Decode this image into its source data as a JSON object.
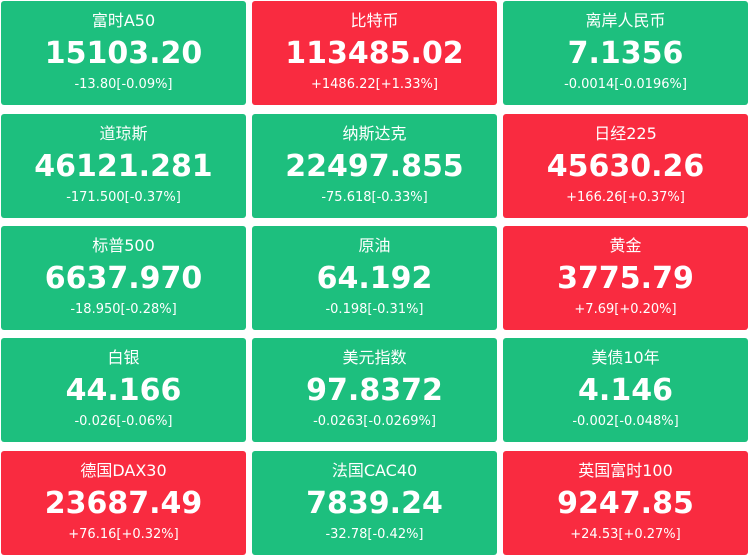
{
  "tiles": [
    {
      "name": "富时A50",
      "price": "15103.20",
      "change": "-13.80[-0.09%]",
      "color": "#1dbf7e"
    },
    {
      "name": "比特币",
      "price": "113485.02",
      "change": "+1486.22[+1.33%]",
      "color": "#f92b40"
    },
    {
      "name": "离岸人民币",
      "price": "7.1356",
      "change": "-0.0014[-0.0196%]",
      "color": "#1dbf7e"
    },
    {
      "name": "道琼斯",
      "price": "46121.281",
      "change": "-171.500[-0.37%]",
      "color": "#1dbf7e"
    },
    {
      "name": "纳斯达克",
      "price": "22497.855",
      "change": "-75.618[-0.33%]",
      "color": "#1dbf7e"
    },
    {
      "name": "日经225",
      "price": "45630.26",
      "change": "+166.26[+0.37%]",
      "color": "#f92b40"
    },
    {
      "name": "标普500",
      "price": "6637.970",
      "change": "-18.950[-0.28%]",
      "color": "#1dbf7e"
    },
    {
      "name": "原油",
      "price": "64.192",
      "change": "-0.198[-0.31%]",
      "color": "#1dbf7e"
    },
    {
      "name": "黄金",
      "price": "3775.79",
      "change": "+7.69[+0.20%]",
      "color": "#f92b40"
    },
    {
      "name": "白银",
      "price": "44.166",
      "change": "-0.026[-0.06%]",
      "color": "#1dbf7e"
    },
    {
      "name": "美元指数",
      "price": "97.8372",
      "change": "-0.0263[-0.0269%]",
      "color": "#1dbf7e"
    },
    {
      "name": "美债10年",
      "price": "4.146",
      "change": "-0.002[-0.048%]",
      "color": "#1dbf7e"
    },
    {
      "name": "德国DAX30",
      "price": "23687.49",
      "change": "+76.16[+0.32%]",
      "color": "#f92b40"
    },
    {
      "name": "法国CAC40",
      "price": "7839.24",
      "change": "-32.78[-0.42%]",
      "color": "#1dbf7e"
    },
    {
      "name": "英国富时100",
      "price": "9247.85",
      "change": "+24.53[+0.27%]",
      "color": "#f92b40"
    }
  ]
}
